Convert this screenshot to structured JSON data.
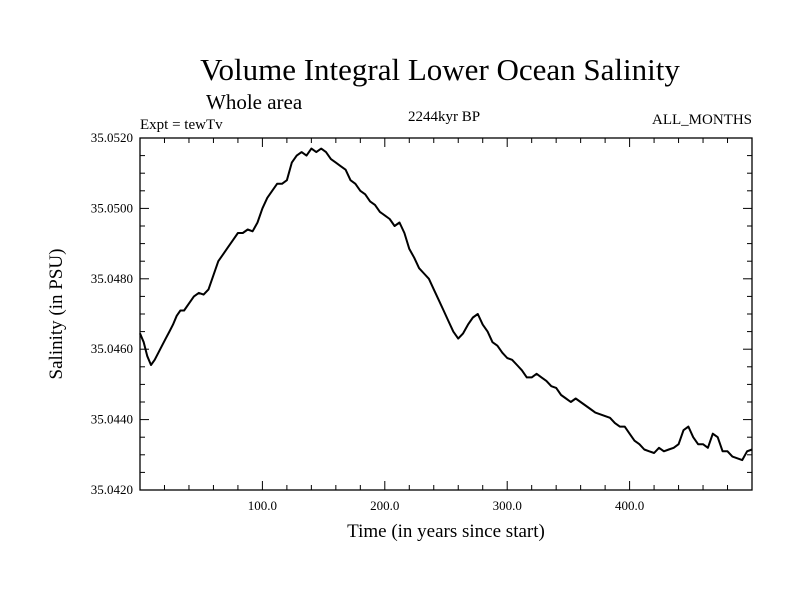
{
  "chart_data": {
    "type": "line",
    "title": "Volume Integral Lower Ocean Salinity",
    "subtitle": "Whole area",
    "experiment": "Expt = tewTv",
    "period": "2244kyr BP",
    "months": "ALL_MONTHS",
    "xlabel": "Time (in years since start)",
    "ylabel": "Salinity (in PSU)",
    "xlim": [
      0,
      500
    ],
    "ylim": [
      35.042,
      35.052
    ],
    "x_ticks": [
      100,
      200,
      300,
      400
    ],
    "x_tick_labels": [
      "100.0",
      "200.0",
      "300.0",
      "400.0"
    ],
    "y_ticks": [
      35.042,
      35.044,
      35.046,
      35.048,
      35.05,
      35.052
    ],
    "y_tick_labels": [
      "35.0420",
      "35.0440",
      "35.0460",
      "35.0480",
      "35.0500",
      "35.0520"
    ],
    "grid": false,
    "series": [
      {
        "name": "Volume Integral Lower Ocean Salinity",
        "x": [
          0,
          3,
          6,
          9,
          12,
          15,
          18,
          21,
          24,
          27,
          30,
          33,
          36,
          40,
          44,
          48,
          52,
          56,
          60,
          64,
          68,
          72,
          76,
          80,
          84,
          88,
          92,
          96,
          100,
          104,
          108,
          112,
          116,
          120,
          124,
          128,
          132,
          136,
          140,
          144,
          148,
          152,
          156,
          160,
          164,
          168,
          172,
          176,
          180,
          184,
          188,
          192,
          196,
          200,
          204,
          208,
          212,
          216,
          220,
          224,
          228,
          232,
          236,
          240,
          244,
          248,
          252,
          256,
          260,
          264,
          268,
          272,
          276,
          280,
          284,
          288,
          292,
          296,
          300,
          304,
          308,
          312,
          316,
          320,
          324,
          328,
          332,
          336,
          340,
          344,
          348,
          352,
          356,
          360,
          364,
          368,
          372,
          376,
          380,
          384,
          388,
          392,
          396,
          400,
          404,
          408,
          412,
          416,
          420,
          424,
          428,
          432,
          436,
          440,
          444,
          448,
          452,
          456,
          460,
          464,
          468,
          472,
          476,
          480,
          484,
          488,
          492,
          496,
          500
        ],
        "values": [
          35.04645,
          35.0462,
          35.0458,
          35.04555,
          35.0457,
          35.0459,
          35.0461,
          35.0463,
          35.0465,
          35.0467,
          35.04695,
          35.0471,
          35.0471,
          35.0473,
          35.0475,
          35.0476,
          35.04755,
          35.0477,
          35.0481,
          35.0485,
          35.0487,
          35.0489,
          35.0491,
          35.0493,
          35.0493,
          35.0494,
          35.04935,
          35.0496,
          35.05,
          35.0503,
          35.0505,
          35.0507,
          35.0507,
          35.0508,
          35.0513,
          35.0515,
          35.0516,
          35.0515,
          35.0517,
          35.0516,
          35.0517,
          35.0516,
          35.0514,
          35.0513,
          35.0512,
          35.0511,
          35.0508,
          35.0507,
          35.0505,
          35.0504,
          35.0502,
          35.0501,
          35.0499,
          35.0498,
          35.0497,
          35.0495,
          35.0496,
          35.0493,
          35.04885,
          35.0486,
          35.0483,
          35.04815,
          35.048,
          35.0477,
          35.0474,
          35.0471,
          35.0468,
          35.0465,
          35.0463,
          35.04645,
          35.0467,
          35.0469,
          35.047,
          35.0467,
          35.0465,
          35.0462,
          35.0461,
          35.0459,
          35.04575,
          35.0457,
          35.04555,
          35.0454,
          35.0452,
          35.0452,
          35.0453,
          35.0452,
          35.0451,
          35.04495,
          35.0449,
          35.0447,
          35.0446,
          35.0445,
          35.0446,
          35.0445,
          35.0444,
          35.0443,
          35.0442,
          35.04415,
          35.0441,
          35.04405,
          35.0439,
          35.0438,
          35.0438,
          35.0436,
          35.0434,
          35.0433,
          35.04315,
          35.0431,
          35.04305,
          35.0432,
          35.0431,
          35.04315,
          35.0432,
          35.0433,
          35.0437,
          35.0438,
          35.0435,
          35.0433,
          35.0433,
          35.0432,
          35.0436,
          35.0435,
          35.0431,
          35.0431,
          35.04295,
          35.0429,
          35.04285,
          35.0431,
          35.04315
        ]
      }
    ]
  }
}
